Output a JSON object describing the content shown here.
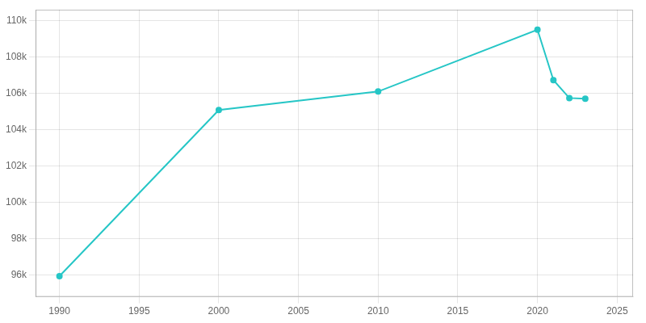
{
  "chart_data": {
    "type": "line",
    "x": [
      1990,
      2000,
      2010,
      2020,
      2021,
      2022,
      2023
    ],
    "values": [
      95936,
      105080,
      106098,
      109501,
      106723,
      105740,
      105706
    ],
    "color": "#26C6C6",
    "marker": "circle",
    "xlim": [
      1988.5,
      2026
    ],
    "ylim": [
      94800,
      110600
    ],
    "xticks": [
      1990,
      1995,
      2000,
      2005,
      2010,
      2015,
      2020,
      2025
    ],
    "yticks": [
      {
        "value": 96000,
        "label": "96k"
      },
      {
        "value": 98000,
        "label": "98k"
      },
      {
        "value": 100000,
        "label": "100k"
      },
      {
        "value": 102000,
        "label": "102k"
      },
      {
        "value": 104000,
        "label": "104k"
      },
      {
        "value": 106000,
        "label": "106k"
      },
      {
        "value": 108000,
        "label": "108k"
      },
      {
        "value": 110000,
        "label": "110k"
      }
    ],
    "grid": true
  }
}
